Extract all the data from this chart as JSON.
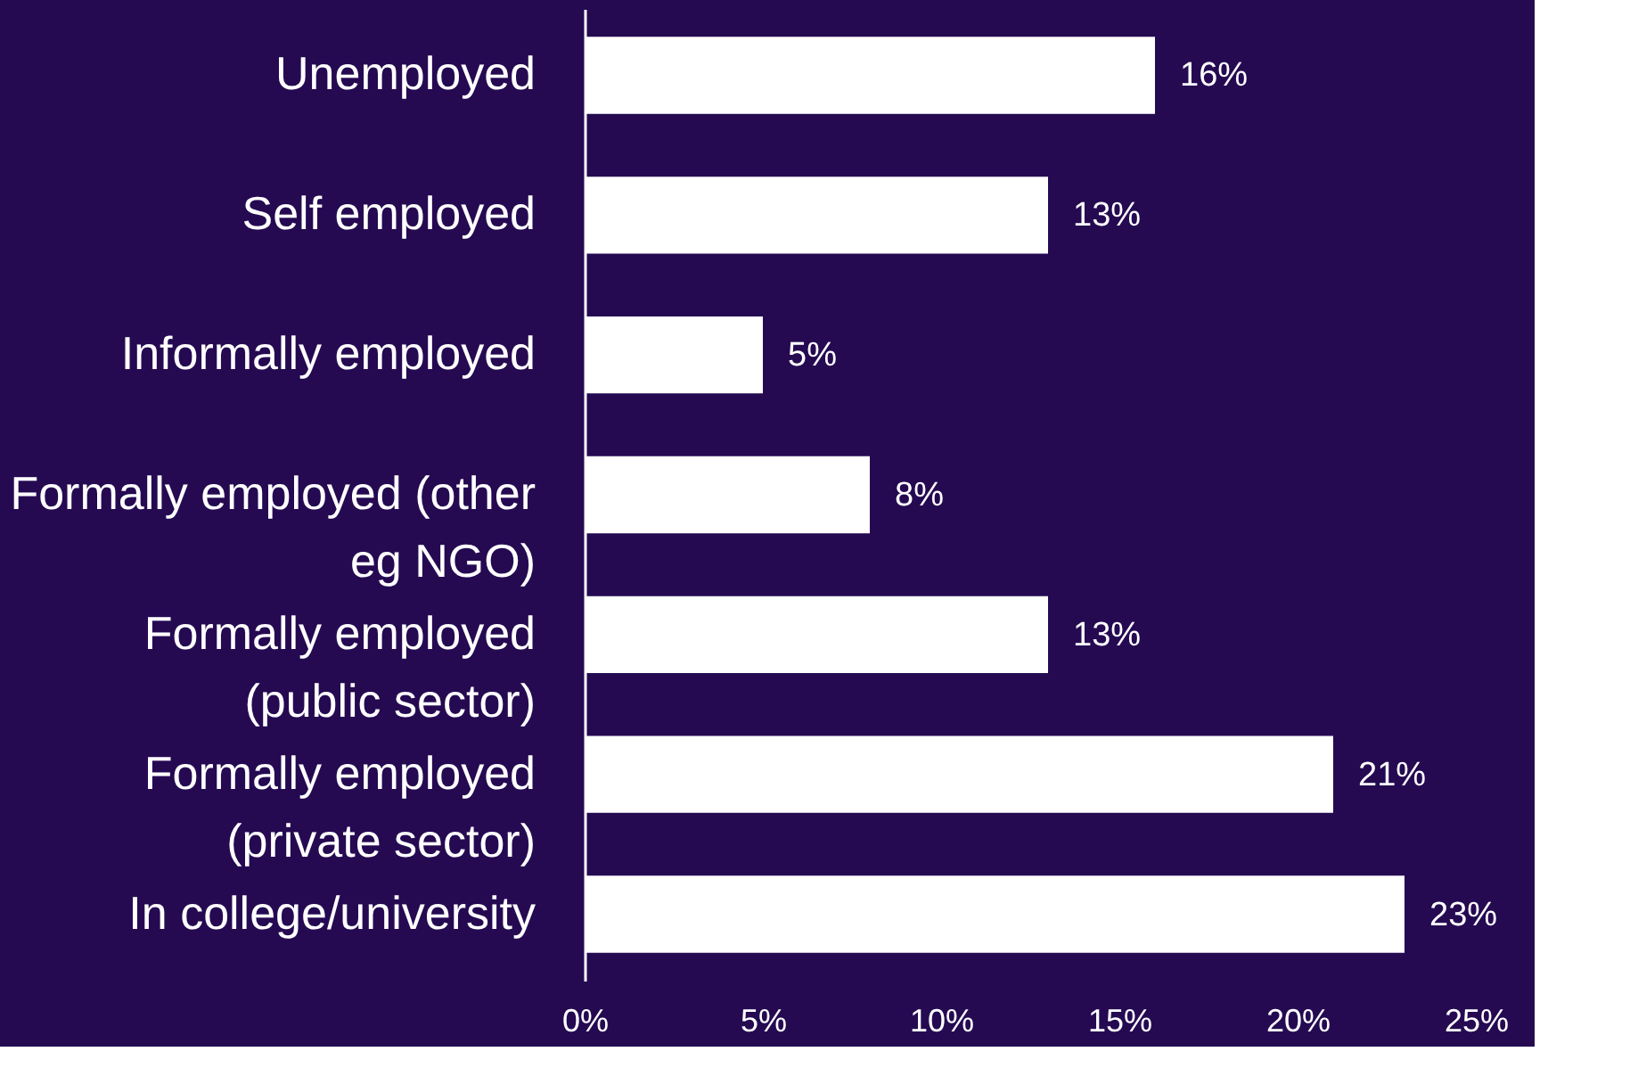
{
  "chart_data": {
    "type": "bar",
    "orientation": "horizontal",
    "categories": [
      "Unemployed",
      "Self employed",
      "Informally employed",
      "Formally employed (other eg NGO)",
      "Formally employed (public sector)",
      "Formally employed (private sector)",
      "In college/university"
    ],
    "values": [
      16,
      13,
      5,
      8,
      13,
      21,
      23
    ],
    "value_labels": [
      "16%",
      "13%",
      "5%",
      "8%",
      "13%",
      "21%",
      "23%"
    ],
    "color": "#ffffff",
    "xlim": [
      0,
      25
    ],
    "xticks": [
      {
        "value": 0,
        "label": "0%"
      },
      {
        "value": 5,
        "label": "5%"
      },
      {
        "value": 10,
        "label": "10%"
      },
      {
        "value": 15,
        "label": "15%"
      },
      {
        "value": 20,
        "label": "20%"
      },
      {
        "value": 25,
        "label": "25%"
      }
    ],
    "grid": false
  }
}
